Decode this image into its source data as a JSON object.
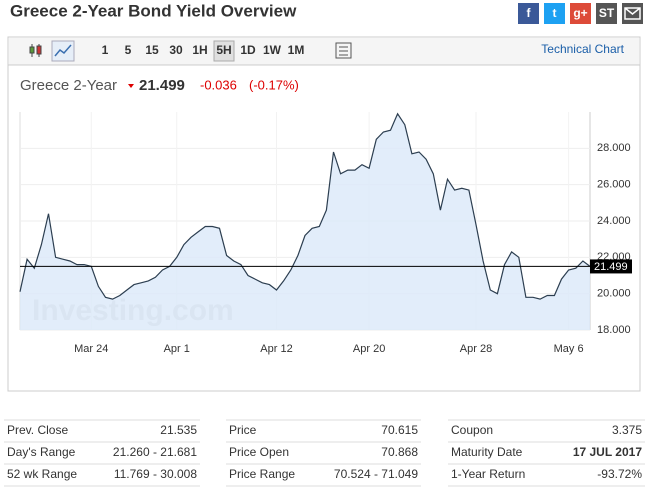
{
  "header": {
    "title": "Greece 2-Year Bond Yield Overview",
    "social": [
      "f",
      "t",
      "g+",
      "ST"
    ]
  },
  "toolbar": {
    "buttons": [
      "1",
      "5",
      "15",
      "30",
      "1H",
      "5H",
      "1D",
      "1W",
      "1M"
    ],
    "selected_index": 5,
    "link": "Technical Chart"
  },
  "quote": {
    "name": "Greece 2-Year",
    "price": "21.499",
    "change": "-0.036",
    "change_pct": "(-0.17%)"
  },
  "chart_data": {
    "type": "area",
    "color": "#2c3e50",
    "fill": "#dbe9f9",
    "watermark": "Investing.com",
    "categories": [
      null,
      null,
      null,
      null,
      null,
      null,
      null,
      null,
      null,
      null,
      "Mar 24",
      null,
      null,
      null,
      null,
      null,
      null,
      null,
      null,
      null,
      null,
      null,
      "Apr 1",
      null,
      null,
      null,
      null,
      null,
      null,
      null,
      null,
      null,
      null,
      null,
      null,
      null,
      "Apr 12",
      null,
      null,
      null,
      null,
      null,
      null,
      null,
      null,
      null,
      null,
      null,
      null,
      "Apr 20",
      null,
      null,
      null,
      null,
      null,
      null,
      null,
      null,
      null,
      null,
      null,
      null,
      null,
      null,
      "Apr 28",
      null,
      null,
      null,
      null,
      null,
      null,
      null,
      null,
      null,
      null,
      null,
      null,
      "May 6",
      null,
      null,
      null
    ],
    "values": [
      20.1,
      21.9,
      21.4,
      22.7,
      24.4,
      22.0,
      21.9,
      21.8,
      21.6,
      21.6,
      21.5,
      20.4,
      19.8,
      19.7,
      19.9,
      20.2,
      20.5,
      20.6,
      20.7,
      20.9,
      21.3,
      21.5,
      22.0,
      22.7,
      23.1,
      23.4,
      23.7,
      23.7,
      23.6,
      22.1,
      21.8,
      21.6,
      21.0,
      20.8,
      20.6,
      20.5,
      20.2,
      20.7,
      21.3,
      22.1,
      23.2,
      23.6,
      23.7,
      24.6,
      27.8,
      26.6,
      26.8,
      26.8,
      27.1,
      26.9,
      28.5,
      28.9,
      29.0,
      29.9,
      29.3,
      27.7,
      27.8,
      27.4,
      26.6,
      24.6,
      26.3,
      25.7,
      25.8,
      25.7,
      23.8,
      21.8,
      20.2,
      20.0,
      21.6,
      22.3,
      22.0,
      19.8,
      19.8,
      19.7,
      19.9,
      19.9,
      20.8,
      21.3,
      21.4,
      21.8,
      21.5
    ],
    "last_value": 21.499,
    "ylim": [
      18,
      30
    ],
    "yticks": [
      {
        "value": 18,
        "label": "18.000"
      },
      {
        "value": 20,
        "label": "20.000"
      },
      {
        "value": 22,
        "label": "22.000"
      },
      {
        "value": 24,
        "label": "24.000"
      },
      {
        "value": 26,
        "label": "26.000"
      },
      {
        "value": 28,
        "label": "28.000"
      }
    ],
    "grid": true
  },
  "table": {
    "columns": [
      [
        [
          "Prev. Close",
          "21.535"
        ],
        [
          "Day's Range",
          "21.260 - 21.681"
        ],
        [
          "52 wk Range",
          "11.769 - 30.008"
        ]
      ],
      [
        [
          "Price",
          "70.615"
        ],
        [
          "Price Open",
          "70.868"
        ],
        [
          "Price Range",
          "70.524 - 71.049"
        ]
      ],
      [
        [
          "Coupon",
          "3.375"
        ],
        [
          "Maturity Date",
          "17 JUL 2017"
        ],
        [
          "1-Year Return",
          "-93.72%"
        ]
      ]
    ]
  }
}
